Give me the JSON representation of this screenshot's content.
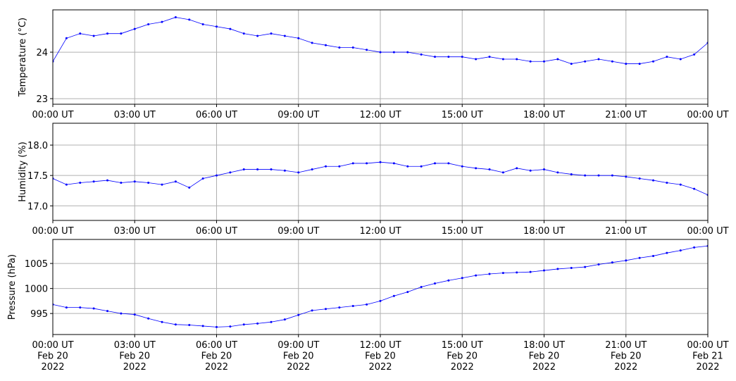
{
  "chart_data": [
    {
      "type": "line",
      "ylabel": "Temperature (°C)",
      "x": [
        0,
        0.5,
        1,
        1.5,
        2,
        2.5,
        3,
        3.5,
        4,
        4.5,
        5,
        5.5,
        6,
        6.5,
        7,
        7.5,
        8,
        8.5,
        9,
        9.5,
        10,
        10.5,
        11,
        11.5,
        12,
        12.5,
        13,
        13.5,
        14,
        14.5,
        15,
        15.5,
        16,
        16.5,
        17,
        17.5,
        18,
        18.5,
        19,
        19.5,
        20,
        20.5,
        21,
        21.5,
        22,
        22.5,
        23,
        23.5,
        24
      ],
      "series": [
        {
          "name": "Temperature",
          "color": "#0000ff",
          "values": [
            23.8,
            24.3,
            24.4,
            24.35,
            24.4,
            24.4,
            24.5,
            24.6,
            24.65,
            24.75,
            24.7,
            24.6,
            24.55,
            24.5,
            24.4,
            24.35,
            24.4,
            24.35,
            24.3,
            24.2,
            24.15,
            24.1,
            24.1,
            24.05,
            24.0,
            24.0,
            24.0,
            23.95,
            23.9,
            23.9,
            23.9,
            23.85,
            23.9,
            23.85,
            23.85,
            23.8,
            23.8,
            23.85,
            23.75,
            23.8,
            23.85,
            23.8,
            23.75,
            23.75,
            23.8,
            23.9,
            23.85,
            23.95,
            24.2
          ]
        }
      ],
      "xlim": [
        0,
        24
      ],
      "xticks": [
        {
          "value": 0,
          "label": "00:00 UT"
        },
        {
          "value": 3,
          "label": "03:00 UT"
        },
        {
          "value": 6,
          "label": "06:00 UT"
        },
        {
          "value": 9,
          "label": "09:00 UT"
        },
        {
          "value": 12,
          "label": "12:00 UT"
        },
        {
          "value": 15,
          "label": "15:00 UT"
        },
        {
          "value": 18,
          "label": "18:00 UT"
        },
        {
          "value": 21,
          "label": "21:00 UT"
        },
        {
          "value": 24,
          "label": "00:00 UT"
        }
      ],
      "ylim": [
        22.88,
        24.91
      ],
      "yticks": [
        23,
        24
      ],
      "grid": true
    },
    {
      "type": "line",
      "ylabel": "Humidity (%)",
      "x": [
        0,
        0.5,
        1,
        1.5,
        2,
        2.5,
        3,
        3.5,
        4,
        4.5,
        5,
        5.5,
        6,
        6.5,
        7,
        7.5,
        8,
        8.5,
        9,
        9.5,
        10,
        10.5,
        11,
        11.5,
        12,
        12.5,
        13,
        13.5,
        14,
        14.5,
        15,
        15.5,
        16,
        16.5,
        17,
        17.5,
        18,
        18.5,
        19,
        19.5,
        20,
        20.5,
        21,
        21.5,
        22,
        22.5,
        23,
        23.5,
        24
      ],
      "series": [
        {
          "name": "Humidity",
          "color": "#0000ff",
          "values": [
            17.45,
            17.35,
            17.38,
            17.4,
            17.42,
            17.38,
            17.4,
            17.38,
            17.35,
            17.4,
            17.3,
            17.45,
            17.5,
            17.55,
            17.6,
            17.6,
            17.6,
            17.58,
            17.55,
            17.6,
            17.65,
            17.65,
            17.7,
            17.7,
            17.72,
            17.7,
            17.65,
            17.65,
            17.7,
            17.7,
            17.65,
            17.62,
            17.6,
            17.55,
            17.62,
            17.58,
            17.6,
            17.55,
            17.52,
            17.5,
            17.5,
            17.5,
            17.48,
            17.45,
            17.42,
            17.38,
            17.35,
            17.28,
            17.18
          ]
        }
      ],
      "xlim": [
        0,
        24
      ],
      "xticks": [
        {
          "value": 0,
          "label": "00:00 UT"
        },
        {
          "value": 3,
          "label": "03:00 UT"
        },
        {
          "value": 6,
          "label": "06:00 UT"
        },
        {
          "value": 9,
          "label": "09:00 UT"
        },
        {
          "value": 12,
          "label": "12:00 UT"
        },
        {
          "value": 15,
          "label": "15:00 UT"
        },
        {
          "value": 18,
          "label": "18:00 UT"
        },
        {
          "value": 21,
          "label": "21:00 UT"
        },
        {
          "value": 24,
          "label": "00:00 UT"
        }
      ],
      "ylim": [
        16.76,
        18.36
      ],
      "yticks": [
        {
          "value": 17,
          "label": "17.0"
        },
        {
          "value": 17.5,
          "label": "17.5"
        },
        {
          "value": 18,
          "label": "18.0"
        }
      ],
      "grid": true
    },
    {
      "type": "line",
      "ylabel": "Pressure (hPa)",
      "x": [
        0,
        0.5,
        1,
        1.5,
        2,
        2.5,
        3,
        3.5,
        4,
        4.5,
        5,
        5.5,
        6,
        6.5,
        7,
        7.5,
        8,
        8.5,
        9,
        9.5,
        10,
        10.5,
        11,
        11.5,
        12,
        12.5,
        13,
        13.5,
        14,
        14.5,
        15,
        15.5,
        16,
        16.5,
        17,
        17.5,
        18,
        18.5,
        19,
        19.5,
        20,
        20.5,
        21,
        21.5,
        22,
        22.5,
        23,
        23.5,
        24
      ],
      "series": [
        {
          "name": "Pressure",
          "color": "#0000ff",
          "values": [
            996.8,
            996.2,
            996.2,
            996.0,
            995.5,
            995.0,
            994.8,
            994.0,
            993.3,
            992.8,
            992.7,
            992.5,
            992.3,
            992.4,
            992.8,
            993.0,
            993.3,
            993.8,
            994.7,
            995.6,
            995.9,
            996.2,
            996.5,
            996.8,
            997.5,
            998.5,
            999.3,
            1000.3,
            1001.0,
            1001.6,
            1002.1,
            1002.6,
            1002.9,
            1003.1,
            1003.2,
            1003.3,
            1003.6,
            1003.9,
            1004.1,
            1004.3,
            1004.8,
            1005.2,
            1005.6,
            1006.1,
            1006.5,
            1007.1,
            1007.6,
            1008.2,
            1008.5
          ]
        }
      ],
      "xlim": [
        0,
        24
      ],
      "xticks": [
        {
          "value": 0,
          "label": "00:00 UT\nFeb 20\n2022"
        },
        {
          "value": 3,
          "label": "03:00 UT\nFeb 20\n2022"
        },
        {
          "value": 6,
          "label": "06:00 UT\nFeb 20\n2022"
        },
        {
          "value": 9,
          "label": "09:00 UT\nFeb 20\n2022"
        },
        {
          "value": 12,
          "label": "12:00 UT\nFeb 20\n2022"
        },
        {
          "value": 15,
          "label": "15:00 UT\nFeb 20\n2022"
        },
        {
          "value": 18,
          "label": "18:00 UT\nFeb 20\n2022"
        },
        {
          "value": 21,
          "label": "21:00 UT\nFeb 20\n2022"
        },
        {
          "value": 24,
          "label": "00:00 UT\nFeb 21\n2022"
        }
      ],
      "ylim": [
        990.8,
        1009.8
      ],
      "yticks": [
        995,
        1000,
        1005
      ],
      "grid": true
    }
  ]
}
